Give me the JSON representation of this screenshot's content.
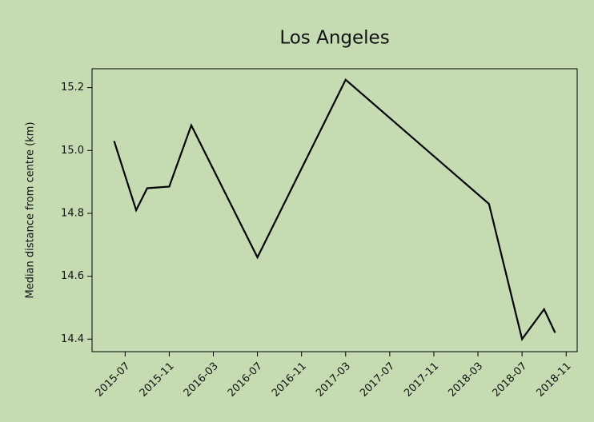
{
  "chart_data": {
    "type": "line",
    "title": "Los Angeles",
    "y_label": "Median distance from centre (km)",
    "x": [
      "2015-06",
      "2015-08",
      "2015-09",
      "2015-11",
      "2016-01",
      "2016-07",
      "2017-03",
      "2018-04",
      "2018-07",
      "2018-09",
      "2018-10"
    ],
    "series": [
      {
        "name": "Los Angeles",
        "color": "#000000",
        "values": [
          15.03,
          14.81,
          14.88,
          14.885,
          15.08,
          14.66,
          15.225,
          14.83,
          14.4,
          14.495,
          14.42
        ]
      }
    ],
    "xlim": [
      "2015-04",
      "2018-12"
    ],
    "xticks": [
      "2015-07",
      "2015-11",
      "2016-03",
      "2016-07",
      "2016-11",
      "2017-03",
      "2017-07",
      "2017-11",
      "2018-03",
      "2018-07",
      "2018-11"
    ],
    "ylim": [
      14.36,
      15.26
    ],
    "yticks": [
      14.4,
      14.6,
      14.8,
      {
        "value": 15,
        "label": "15.0"
      },
      15.2
    ],
    "grid": false
  }
}
